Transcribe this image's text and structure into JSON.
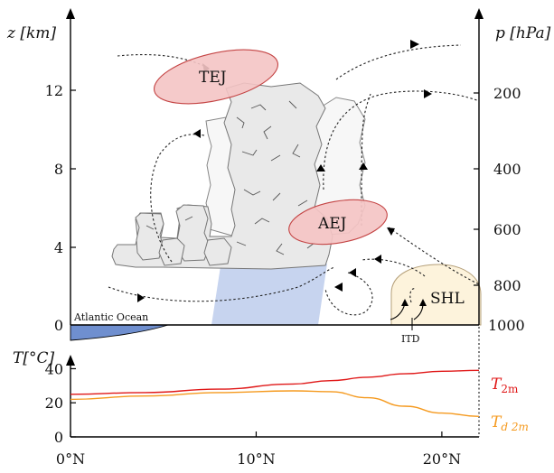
{
  "upper_panel": {
    "left_axis_label": "z [km]",
    "right_axis_label": "p [hPa]",
    "left_ticks": [
      "12",
      "8",
      "4",
      "0"
    ],
    "right_ticks": [
      "200",
      "400",
      "600",
      "800",
      "1000"
    ],
    "labels": {
      "tej": "TEJ",
      "aej": "AEJ",
      "shl": "SHL",
      "atlantic": "Atlantic Ocean",
      "itd": "ITD"
    },
    "colors": {
      "jet_fill": "#f4c4c4",
      "jet_stroke": "#c44444",
      "shl_fill": "#fdf3dc",
      "monsoon_fill": "#c7d4ef",
      "ocean_fill": "#6f8fcf"
    }
  },
  "lower_panel": {
    "y_axis_label": "T[°C]",
    "y_ticks": [
      "40",
      "20",
      "0"
    ],
    "x_ticks": [
      "0°N",
      "10°N",
      "20°N"
    ]
  },
  "chart_data": {
    "type": "line",
    "title": "",
    "xlabel": "",
    "ylabel": "T[°C]",
    "xlim": [
      0,
      22
    ],
    "ylim": [
      0,
      45
    ],
    "series": [
      {
        "name": "T2m",
        "color": "#e01818",
        "x": [
          0,
          4,
          8,
          12,
          14,
          16,
          18,
          20,
          22
        ],
        "y": [
          25,
          26,
          28,
          31,
          33,
          35,
          37,
          38.5,
          39
        ]
      },
      {
        "name": "Td2m",
        "color": "#f59a1f",
        "x": [
          0,
          4,
          8,
          12,
          14,
          16,
          18,
          20,
          22
        ],
        "y": [
          22,
          24,
          26,
          27,
          26.5,
          23,
          18,
          14,
          12
        ]
      }
    ],
    "legend": {
      "t2m": {
        "main": "T",
        "sub": "2m"
      },
      "td2m": {
        "main": "T",
        "sub": "d 2m"
      }
    }
  }
}
